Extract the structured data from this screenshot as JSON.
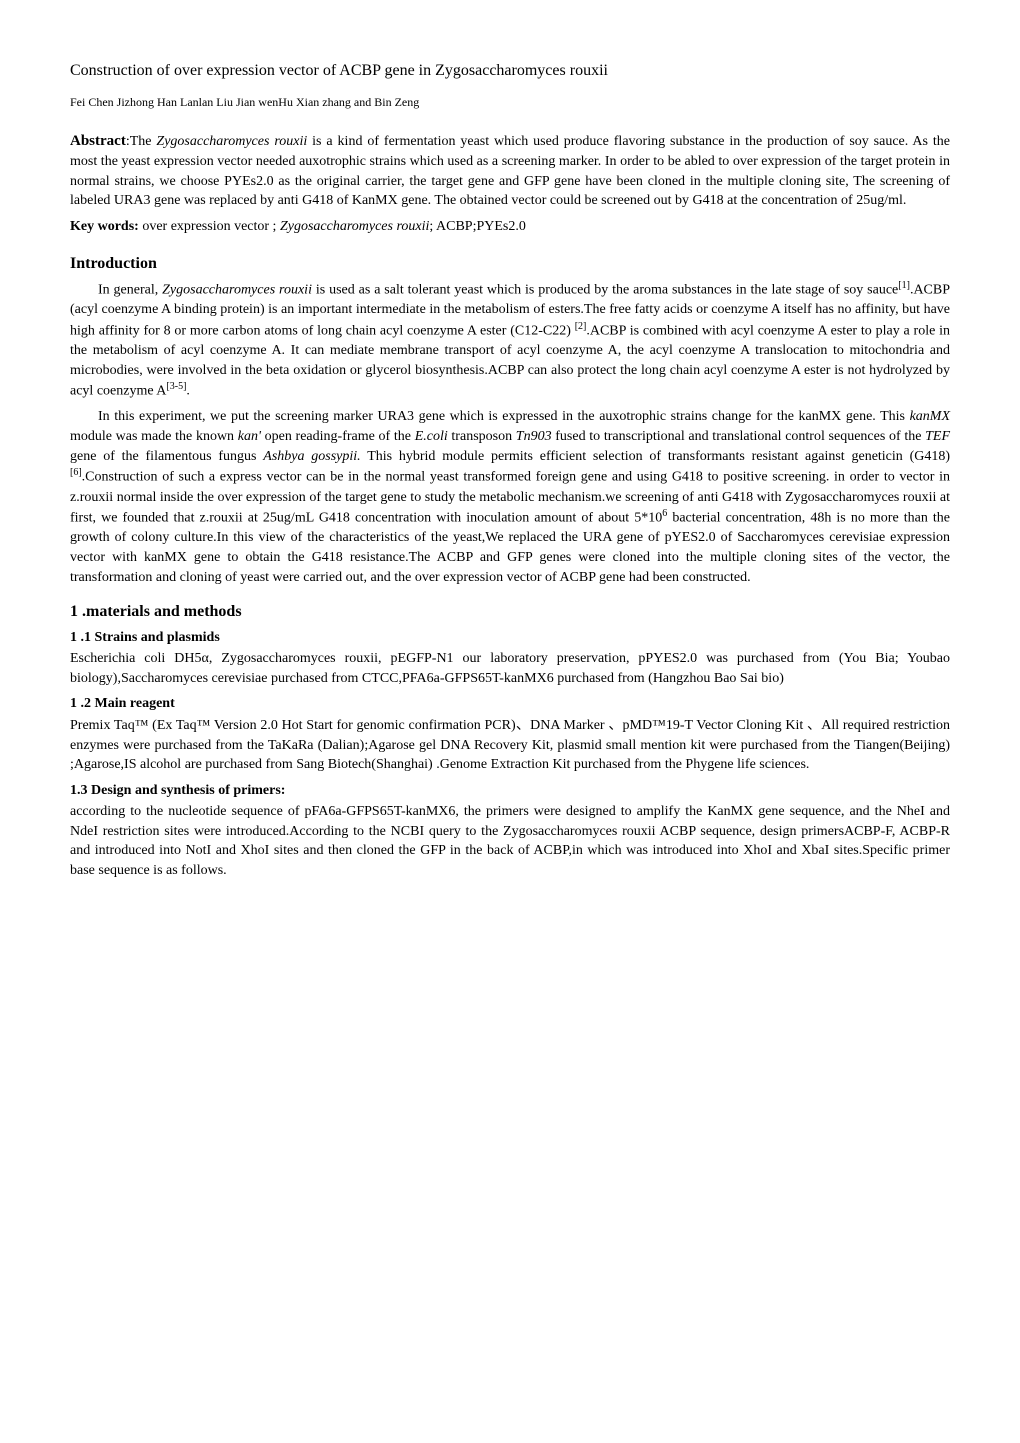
{
  "title": "Construction of over expression vector of ACBP gene in Zygosaccharomyces rouxii",
  "authors": "Fei Chen  Jizhong Han  Lanlan Liu  Jian wenHu  Xian zhang and Bin Zeng",
  "abstract": {
    "label": "Abstract",
    "prefix": ":The ",
    "species": "Zygosaccharomyces rouxii",
    "body": " is a kind of fermentation yeast which used produce flavoring substance in the production of soy sauce. As the most the yeast expression vector needed auxotrophic strains which used as a screening marker. In order to be abled to over expression of the target protein in normal strains, we choose PYEs2.0 as the original carrier, the target gene and GFP gene have been cloned in the multiple cloning site, The screening of labeled URA3 gene was replaced by anti G418 of KanMX gene. The obtained vector could be screened out by G418 at the concentration of 25ug/ml."
  },
  "keywords": {
    "label": "Key words:",
    "pre": " over expression vector ; ",
    "species": "Zygosaccharomyces rouxii",
    "post": "; ACBP;PYEs2.0"
  },
  "introduction": {
    "heading": "Introduction",
    "p1": {
      "a": "In general, ",
      "species": "Zygosaccharomyces rouxii",
      "b": " is used as a salt tolerant yeast which is produced by the aroma substances in the late stage of soy sauce",
      "sup1": "[1]",
      "c": ".ACBP (acyl coenzyme A binding protein) is an important intermediate in the metabolism of esters.The free fatty acids or coenzyme A itself has no affinity, but have high affinity for 8 or more carbon atoms of long chain acyl coenzyme A ester (C12-C22) ",
      "sup2": "[2]",
      "d": ".ACBP is combined with acyl coenzyme A ester to play a role in the metabolism of acyl coenzyme A. It can mediate membrane transport of acyl coenzyme A, the acyl coenzyme A translocation to mitochondria and microbodies, were involved in the beta oxidation or glycerol biosynthesis.ACBP can also protect the long chain acyl coenzyme A ester is not hydrolyzed by acyl coenzyme A",
      "sup3": "[3-5]",
      "e": "."
    },
    "p2": {
      "a": "In this experiment, we put the screening marker URA3 gene which is expressed in the auxotrophic strains  change for the kanMX gene. This ",
      "i1": "kanMX",
      "b": " module was made the known ",
      "i2": "kan'",
      "c": " open reading-frame of the ",
      "i3": "E.coli",
      "d": " transposon ",
      "i4": "Tn903",
      "e": " fused to transcriptional and translational control sequences of the ",
      "i5": "TEF",
      "f": " gene of the filamentous fungus ",
      "i6": "Ashbya gossypii.",
      "g": " This hybrid module permits efficient selection of transformants resistant against geneticin (G418)",
      "sup1": "[6]",
      "h": ".Construction of such a express vector can be in the normal yeast transformed foreign gene and using G418 to positive screening. in order to vector in z.rouxii normal inside the over expression of the target gene to study the metabolic mechanism.we screening of anti G418 with Zygosaccharomyces rouxii at first, we founded that z.rouxii at 25ug/mL G418 concentration with inoculation amount of about 5*10",
      "sup2": "6",
      "i": " bacterial concentration, 48h is no more than the growth of colony culture.In this view of the characteristics of the yeast,We replaced the URA gene of pYES2.0 of Saccharomyces cerevisiae expression vector with kanMX gene to obtain the G418 resistance.The ACBP and GFP genes were cloned into the multiple cloning sites of the vector, the transformation and cloning of yeast were carried out, and the over expression vector of ACBP gene had been constructed."
    }
  },
  "methods": {
    "heading": "1 .materials and methods",
    "s1": {
      "heading": "1 .1 Strains and plasmids",
      "body": "Escherichia coli DH5α, Zygosaccharomyces rouxii, pEGFP-N1 our laboratory preservation, pPYES2.0 was purchased from (You Bia; Youbao biology),Saccharomyces cerevisiae purchased from CTCC,PFA6a-GFPS65T-kanMX6 purchased from (Hangzhou Bao Sai bio)"
    },
    "s2": {
      "heading": "1 .2 Main reagent",
      "body": "Premix Taq™ (Ex Taq™ Version 2.0 Hot Start for genomic confirmation PCR)、DNA Marker 、pMD™19-T Vector Cloning Kit 、All required restriction enzymes were purchased from the TaKaRa (Dalian);Agarose gel DNA Recovery Kit, plasmid small mention kit were purchased from the Tiangen(Beijing) ;Agarose,IS alcohol are purchased from Sang Biotech(Shanghai) .Genome Extraction Kit purchased from the Phygene life sciences."
    },
    "s3": {
      "heading": "1.3 Design and synthesis of primers",
      "colon": ":",
      "body": "according to the nucleotide sequence of pFA6a-GFPS65T-kanMX6, the primers were designed to amplify the KanMX gene sequence, and the NheI and NdeI restriction sites were introduced.According to the NCBI query to the Zygosaccharomyces rouxii ACBP sequence, design primersACBP-F, ACBP-R and introduced into NotI and XhoI sites and then cloned the GFP in the back of ACBP,in which was introduced into XhoI and XbaI sites.Specific primer base sequence is as follows."
    }
  }
}
